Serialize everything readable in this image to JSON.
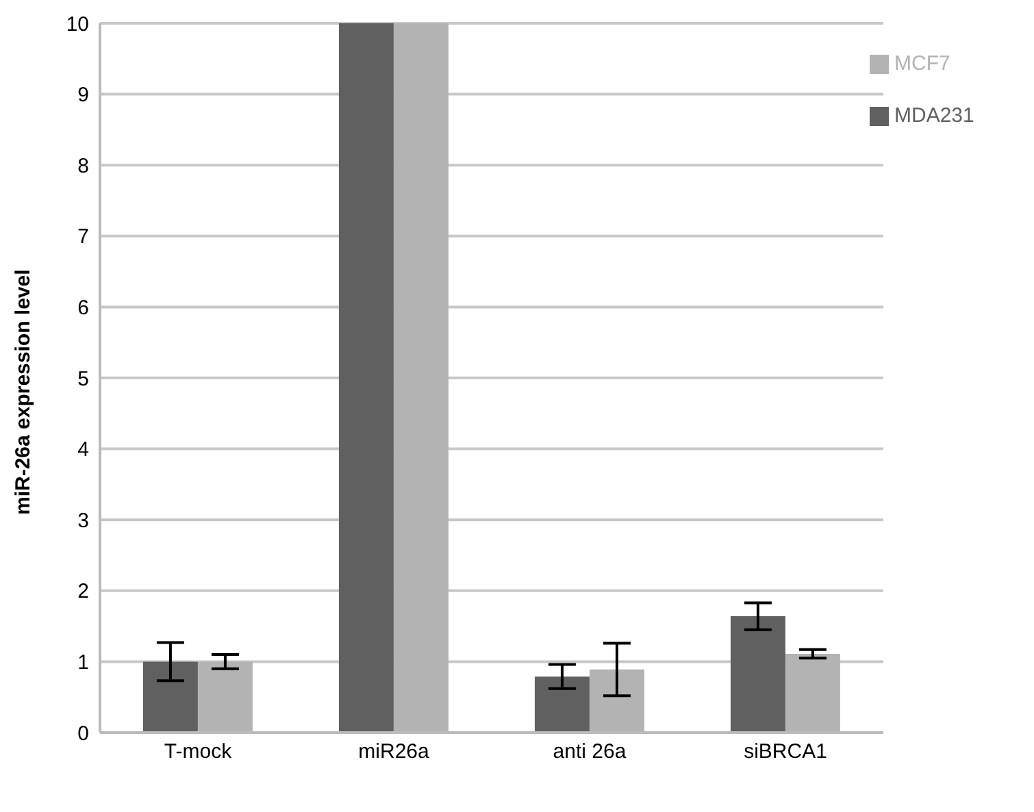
{
  "chart_data": {
    "type": "bar",
    "ylabel": "miR-26a expression level",
    "categories": [
      "T-mock",
      "miR26a",
      "anti 26a",
      "siBRCA1"
    ],
    "series": [
      {
        "name": "MDA231",
        "color": "#606060",
        "values": [
          1.0,
          10,
          0.79,
          1.64
        ],
        "errors": [
          0.27,
          null,
          0.17,
          0.19
        ]
      },
      {
        "name": "MCF7",
        "color": "#b3b3b3",
        "values": [
          1.0,
          10,
          0.89,
          1.11
        ],
        "errors": [
          0.1,
          null,
          0.37,
          0.06
        ]
      }
    ],
    "ylim": [
      0,
      10
    ],
    "yticks": [
      0,
      1,
      2,
      3,
      4,
      5,
      6,
      7,
      8,
      9,
      10
    ],
    "grid": "y",
    "legend": "top right"
  }
}
